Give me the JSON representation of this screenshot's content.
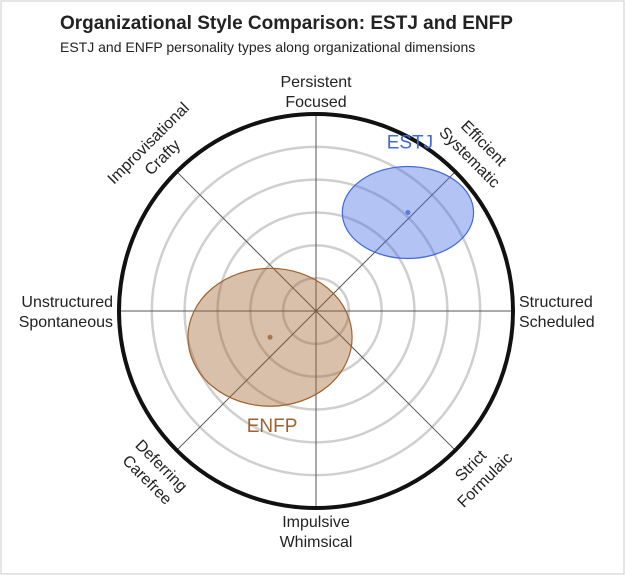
{
  "chart_data": {
    "type": "polar-ellipse",
    "title": "Organizational Style Comparison: ESTJ and ENFP",
    "subtitle": "ESTJ and ENFP personality types along organizational dimensions",
    "axis_labels": [
      [
        "Persistent",
        "Focused"
      ],
      [
        "Efficient",
        "Systematic"
      ],
      [
        "Structured",
        "Scheduled"
      ],
      [
        "Strict",
        "Formulaic"
      ],
      [
        "Impulsive",
        "Whimsical"
      ],
      [
        "Deferring",
        "Carefree"
      ],
      [
        "Unstructured",
        "Spontaneous"
      ],
      [
        "Improvisational",
        "Crafty"
      ]
    ],
    "rlim": [
      0,
      6
    ],
    "rticks": [
      1,
      2,
      3,
      4,
      5
    ],
    "grid": true,
    "series": [
      {
        "name": "ESTJ",
        "color": "#4169e1",
        "x": 2.8,
        "y": 3.0,
        "rx": 2.0,
        "ry": 1.4
      },
      {
        "name": "ENFP",
        "color": "#a0622d",
        "x": -1.4,
        "y": -0.8,
        "rx": 2.5,
        "ry": 2.1
      }
    ]
  }
}
